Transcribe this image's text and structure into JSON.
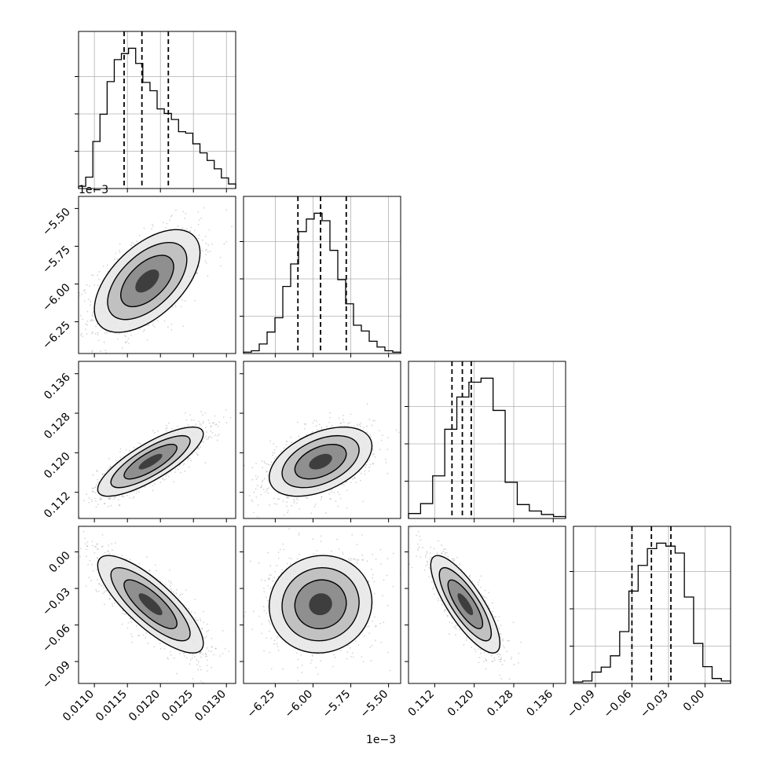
{
  "chart_data": {
    "type": "corner",
    "parameters": 4,
    "grid": true,
    "offset_labels": {
      "x_col0": "1e−3",
      "y_row1": "1e−3"
    },
    "axes": {
      "p0": {
        "ticks": [
          "0.0110",
          "0.0115",
          "0.0120",
          "0.0125",
          "0.0130"
        ],
        "tick_values": [
          0.011,
          0.0115,
          0.012,
          0.0125,
          0.013
        ],
        "range": [
          0.01076,
          0.01314
        ]
      },
      "p1": {
        "ticks": [
          "−6.25",
          "−6.00",
          "−5.75",
          "−5.50"
        ],
        "tick_values": [
          -6.25,
          -6.0,
          -5.75,
          -5.5
        ],
        "range": [
          -6.46,
          -5.42
        ]
      },
      "p2": {
        "ticks": [
          "0.112",
          "0.120",
          "0.128",
          "0.136"
        ],
        "tick_values": [
          0.112,
          0.12,
          0.128,
          0.136
        ],
        "range": [
          0.1067,
          0.1385
        ]
      },
      "p3": {
        "ticks": [
          "−0.09",
          "0.00",
          "−0.06",
          "−0.03"
        ],
        "tick_values": [
          -0.09,
          0.0,
          -0.06,
          -0.03
        ],
        "range": [
          -0.108,
          0.021
        ]
      }
    },
    "y_tick_labels": {
      "row1": [
        "−5.50",
        "−5.75",
        "−6.00",
        "−6.25"
      ],
      "row2": [
        "0.136",
        "0.128",
        "0.120",
        "0.112"
      ],
      "row3": [
        "0.00",
        "−0.03",
        "−0.06",
        "−0.09"
      ]
    },
    "x_tick_labels": {
      "col0": [
        "0.0110",
        "0.0115",
        "0.0120",
        "0.0125",
        "0.0130"
      ],
      "col1": [
        "−6.25",
        "−6.00",
        "−5.75",
        "−5.50"
      ],
      "col2": [
        "0.112",
        "0.120",
        "0.128",
        "0.136"
      ],
      "col3": [
        "−0.09",
        "−0.06",
        "−0.03",
        "0.00"
      ]
    },
    "quantiles": {
      "p0": [
        0.01145,
        0.01172,
        0.01212
      ],
      "p1": [
        -6.1,
        -5.95,
        -5.78
      ],
      "p2": [
        0.1155,
        0.1176,
        0.1194
      ],
      "p3": [
        -0.06,
        -0.044,
        -0.028
      ]
    },
    "histograms": {
      "p0": [
        0.3,
        1.5,
        6.2,
        9.8,
        14.1,
        17.0,
        17.8,
        18.5,
        16.5,
        14.0,
        12.9,
        10.5,
        9.9,
        9.1,
        7.5,
        7.3,
        5.9,
        4.7,
        3.7,
        2.6,
        1.4,
        0.6
      ],
      "p1": [
        0.4,
        0.8,
        2.8,
        6.3,
        10.5,
        19.7,
        26.3,
        35.8,
        39.5,
        41.2,
        39.0,
        30.3,
        21.7,
        14.6,
        8.3,
        6.6,
        3.6,
        1.9,
        0.8,
        0.4
      ],
      "p2": [
        1.0,
        3.0,
        8.6,
        18.0,
        24.5,
        27.5,
        28.3,
        21.8,
        7.3,
        2.8,
        1.5,
        0.8,
        0.4
      ],
      "p3": [
        0.3,
        0.5,
        2.3,
        3.3,
        5.6,
        10.5,
        18.7,
        23.9,
        27.3,
        28.4,
        27.8,
        26.4,
        17.5,
        8.1,
        3.4,
        1.0,
        0.5
      ]
    },
    "scatter_centers": {
      "p0_p1": {
        "mx": 0.0118,
        "my": -5.98,
        "sx": 0.0004,
        "sy": 0.17,
        "rho": 0.55
      },
      "p0_p2": {
        "mx": 0.01185,
        "my": 0.1182,
        "sx": 0.0004,
        "sy": 0.0035,
        "rho": 0.8
      },
      "p1_p2": {
        "mx": -5.95,
        "my": 0.1182,
        "sx": 0.17,
        "sy": 0.0035,
        "rho": 0.45
      },
      "p0_p3": {
        "mx": 0.01185,
        "my": -0.043,
        "sx": 0.0004,
        "sy": 0.02,
        "rho": -0.8
      },
      "p1_p3": {
        "mx": -5.95,
        "my": -0.043,
        "sx": 0.17,
        "sy": 0.02,
        "rho": 0.05
      },
      "p2_p3": {
        "mx": 0.1182,
        "my": -0.043,
        "sx": 0.0035,
        "sy": 0.02,
        "rho": -0.8
      }
    }
  }
}
